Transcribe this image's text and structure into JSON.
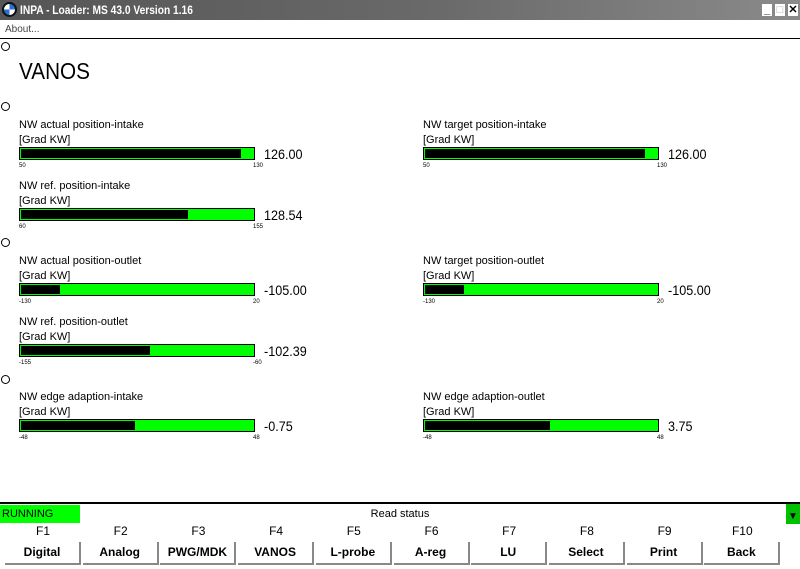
{
  "window": {
    "title": "INPA - Loader:  MS 43.0 Version 1.16",
    "menu": "About..."
  },
  "page_title": "VANOS",
  "gauges": [
    {
      "label": "NW actual position-intake",
      "unit": "[Grad KW]",
      "value": "126.00",
      "num": 126.0,
      "min": "50",
      "max": "130",
      "minv": 50,
      "maxv": 130
    },
    {
      "label": "NW target position-intake",
      "unit": "[Grad KW]",
      "value": "126.00",
      "num": 126.0,
      "min": "50",
      "max": "130",
      "minv": 50,
      "maxv": 130
    },
    {
      "label": "NW ref. position-intake",
      "unit": "[Grad KW]",
      "value": "128.54",
      "num": 128.54,
      "min": "60",
      "max": "155",
      "minv": 60,
      "maxv": 155
    },
    {
      "label": "NW actual position-outlet",
      "unit": "[Grad KW]",
      "value": "-105.00",
      "num": -105.0,
      "min": "-130",
      "max": "20",
      "minv": -130,
      "maxv": 20
    },
    {
      "label": "NW target position-outlet",
      "unit": "[Grad KW]",
      "value": "-105.00",
      "num": -105.0,
      "min": "-130",
      "max": "20",
      "minv": -130,
      "maxv": 20
    },
    {
      "label": "NW ref. position-outlet",
      "unit": "[Grad KW]",
      "value": "-102.39",
      "num": -102.39,
      "min": "-155",
      "max": "-60",
      "minv": -155,
      "maxv": -60
    },
    {
      "label": "NW edge adaption-intake",
      "unit": "[Grad KW]",
      "value": "-0.75",
      "num": -0.75,
      "min": "-48",
      "max": "48",
      "minv": -48,
      "maxv": 48
    },
    {
      "label": "NW edge adaption-outlet",
      "unit": "[Grad KW]",
      "value": "3.75",
      "num": 3.75,
      "min": "-48",
      "max": "48",
      "minv": -48,
      "maxv": 48
    }
  ],
  "status": {
    "state": "RUNNING",
    "message": "Read status",
    "colors": {
      "running": "#00ff00",
      "bar": "#000000"
    }
  },
  "fkeys": [
    {
      "key": "F1",
      "label": "Digital"
    },
    {
      "key": "F2",
      "label": "Analog"
    },
    {
      "key": "F3",
      "label": "PWG/MDK"
    },
    {
      "key": "F4",
      "label": "VANOS"
    },
    {
      "key": "F5",
      "label": "L-probe"
    },
    {
      "key": "F6",
      "label": "A-reg"
    },
    {
      "key": "F7",
      "label": "LU"
    },
    {
      "key": "F8",
      "label": "Select"
    },
    {
      "key": "F9",
      "label": "Print"
    },
    {
      "key": "F10",
      "label": "Back"
    }
  ]
}
